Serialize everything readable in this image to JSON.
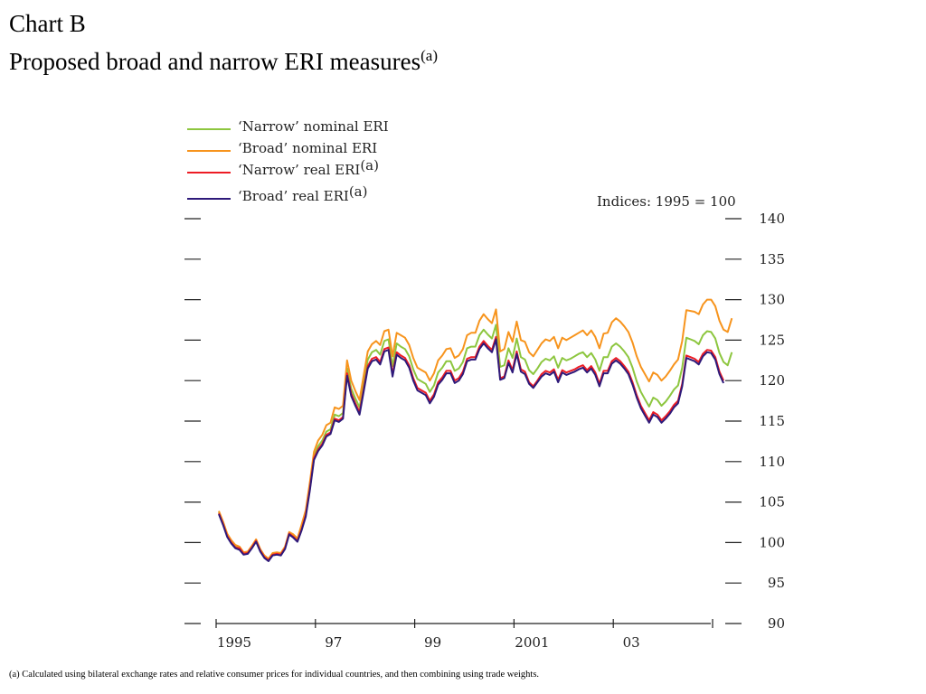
{
  "page": {
    "title": "Chart B",
    "subtitle": "Proposed broad and narrow ERI measures",
    "subtitle_sup": "(a)",
    "footnote": "(a) Calculated using bilateral exchange rates and relative consumer prices for individual countries, and then combining using trade weights."
  },
  "chart_data": {
    "type": "line",
    "title": "Chart B",
    "subtitle": "Proposed broad and narrow ERI measures(a)",
    "units_label": "Indices:  1995 = 100",
    "xlabel": "",
    "ylabel": "",
    "x_start": "1995-01",
    "x_ticks": [
      "1995",
      "97",
      "99",
      "2001",
      "03"
    ],
    "ylim": [
      90,
      140
    ],
    "y_ticks": [
      90,
      95,
      100,
      105,
      110,
      115,
      120,
      125,
      130,
      135,
      140
    ],
    "grid": false,
    "legend_position": "top-left",
    "series": [
      {
        "name": "‘Narrow’ nominal ERI",
        "name_sup": "",
        "color": "#8dc63f",
        "values": [
          103.8,
          102.5,
          101.0,
          100.2,
          99.6,
          99.4,
          98.7,
          98.8,
          99.5,
          100.3,
          99.1,
          98.3,
          97.9,
          98.6,
          98.7,
          98.6,
          99.4,
          101.2,
          100.8,
          100.2,
          101.8,
          103.5,
          106.8,
          110.7,
          111.9,
          112.6,
          113.7,
          114.0,
          115.8,
          115.6,
          116.0,
          121.5,
          119.0,
          117.8,
          116.7,
          119.6,
          122.6,
          123.5,
          123.8,
          123.2,
          124.9,
          125.1,
          121.8,
          124.6,
          124.2,
          123.9,
          123.0,
          121.4,
          120.2,
          119.9,
          119.6,
          118.6,
          119.4,
          121.0,
          121.6,
          122.4,
          122.4,
          121.2,
          121.5,
          122.3,
          124.0,
          124.2,
          124.2,
          125.6,
          126.3,
          125.7,
          125.2,
          126.9,
          121.7,
          121.9,
          124.0,
          122.8,
          125.2,
          122.9,
          122.6,
          121.3,
          120.8,
          121.5,
          122.3,
          122.7,
          122.5,
          123.0,
          121.6,
          122.8,
          122.5,
          122.7,
          123.0,
          123.3,
          123.5,
          122.9,
          123.4,
          122.6,
          121.2,
          122.9,
          122.9,
          124.2,
          124.6,
          124.2,
          123.6,
          122.9,
          121.6,
          119.9,
          118.6,
          117.7,
          116.8,
          117.9,
          117.6,
          116.9,
          117.4,
          118.1,
          118.9,
          119.4,
          121.6,
          125.3,
          125.1,
          124.9,
          124.5,
          125.6,
          126.1,
          126.0,
          125.2,
          123.4,
          122.3,
          121.9,
          123.5
        ]
      },
      {
        "name": "‘Broad’ nominal ERI",
        "name_sup": "",
        "color": "#f7941d",
        "values": [
          103.9,
          102.6,
          101.1,
          100.3,
          99.7,
          99.5,
          98.8,
          98.9,
          99.6,
          100.4,
          99.2,
          98.4,
          98.0,
          98.7,
          98.8,
          98.7,
          99.5,
          101.3,
          101.0,
          100.5,
          102.2,
          104.0,
          107.4,
          111.2,
          112.6,
          113.3,
          114.5,
          114.8,
          116.7,
          116.5,
          116.9,
          122.5,
          120.0,
          118.7,
          117.6,
          120.6,
          123.6,
          124.5,
          124.9,
          124.4,
          126.1,
          126.3,
          123.0,
          125.9,
          125.6,
          125.3,
          124.4,
          122.8,
          121.6,
          121.3,
          121.0,
          120.0,
          120.9,
          122.5,
          123.1,
          123.9,
          124.0,
          122.8,
          123.1,
          123.9,
          125.6,
          125.9,
          125.9,
          127.4,
          128.2,
          127.6,
          127.1,
          128.8,
          123.6,
          123.9,
          126.0,
          124.8,
          127.3,
          125.0,
          124.8,
          123.5,
          123.0,
          123.8,
          124.6,
          125.1,
          124.9,
          125.4,
          124.0,
          125.3,
          125.0,
          125.3,
          125.6,
          125.9,
          126.2,
          125.6,
          126.2,
          125.4,
          124.0,
          125.8,
          125.9,
          127.2,
          127.7,
          127.3,
          126.7,
          126.0,
          124.7,
          123.0,
          121.7,
          120.8,
          119.9,
          121.0,
          120.7,
          120.0,
          120.5,
          121.2,
          122.0,
          122.6,
          124.9,
          128.7,
          128.6,
          128.5,
          128.2,
          129.4,
          130.0,
          130.0,
          129.2,
          127.4,
          126.3,
          126.0,
          127.7
        ]
      },
      {
        "name": "‘Narrow’ real ERI",
        "name_sup": "(a)",
        "color": "#ed1c24",
        "values": [
          103.6,
          102.3,
          100.8,
          100.0,
          99.4,
          99.3,
          98.6,
          98.7,
          99.4,
          100.2,
          99.0,
          98.2,
          97.8,
          98.5,
          98.6,
          98.5,
          99.3,
          101.1,
          100.7,
          100.2,
          101.6,
          103.4,
          106.6,
          110.4,
          111.5,
          112.2,
          113.3,
          113.6,
          115.3,
          115.1,
          115.5,
          120.9,
          118.4,
          117.2,
          116.1,
          118.9,
          121.8,
          122.7,
          122.9,
          122.3,
          123.9,
          124.1,
          120.8,
          123.5,
          123.1,
          122.8,
          121.9,
          120.3,
          119.1,
          118.8,
          118.5,
          117.5,
          118.3,
          119.8,
          120.4,
          121.2,
          121.2,
          120.0,
          120.3,
          121.1,
          122.7,
          122.9,
          122.9,
          124.2,
          124.9,
          124.3,
          123.8,
          125.4,
          120.3,
          120.5,
          122.5,
          121.3,
          123.6,
          121.4,
          121.1,
          119.8,
          119.3,
          120.0,
          120.8,
          121.2,
          121.0,
          121.4,
          120.1,
          121.3,
          121.0,
          121.2,
          121.4,
          121.7,
          121.9,
          121.3,
          121.8,
          121.0,
          119.6,
          121.2,
          121.2,
          122.4,
          122.8,
          122.4,
          121.8,
          121.1,
          119.8,
          118.2,
          116.9,
          116.0,
          115.1,
          116.1,
          115.8,
          115.1,
          115.6,
          116.2,
          117.0,
          117.5,
          119.6,
          123.1,
          122.9,
          122.7,
          122.3,
          123.3,
          123.8,
          123.7,
          122.9,
          121.1,
          120.0
        ]
      },
      {
        "name": "‘Broad’ real ERI",
        "name_sup": "(a)",
        "color": "#2e1a7a",
        "values": [
          103.5,
          102.2,
          100.7,
          99.9,
          99.3,
          99.1,
          98.5,
          98.6,
          99.3,
          100.1,
          98.9,
          98.1,
          97.7,
          98.4,
          98.5,
          98.4,
          99.2,
          101.0,
          100.6,
          100.1,
          101.5,
          103.2,
          106.4,
          110.2,
          111.3,
          112.0,
          113.1,
          113.4,
          115.1,
          114.9,
          115.3,
          120.6,
          118.1,
          116.9,
          115.8,
          118.6,
          121.5,
          122.4,
          122.6,
          122.0,
          123.6,
          123.8,
          120.5,
          123.2,
          122.8,
          122.5,
          121.6,
          120.0,
          118.8,
          118.5,
          118.2,
          117.2,
          118.0,
          119.5,
          120.1,
          120.9,
          120.9,
          119.7,
          120.0,
          120.8,
          122.4,
          122.6,
          122.6,
          123.9,
          124.6,
          124.0,
          123.5,
          125.1,
          120.1,
          120.3,
          122.2,
          121.0,
          123.3,
          121.1,
          120.8,
          119.6,
          119.1,
          119.8,
          120.5,
          120.9,
          120.7,
          121.1,
          119.8,
          121.0,
          120.7,
          120.9,
          121.1,
          121.4,
          121.6,
          121.0,
          121.5,
          120.7,
          119.3,
          120.9,
          120.9,
          122.1,
          122.5,
          122.1,
          121.5,
          120.8,
          119.5,
          117.9,
          116.6,
          115.7,
          114.8,
          115.8,
          115.5,
          114.8,
          115.3,
          115.9,
          116.7,
          117.2,
          119.3,
          122.8,
          122.6,
          122.4,
          122.0,
          123.0,
          123.5,
          123.4,
          122.6,
          120.8,
          119.7
        ]
      }
    ]
  }
}
